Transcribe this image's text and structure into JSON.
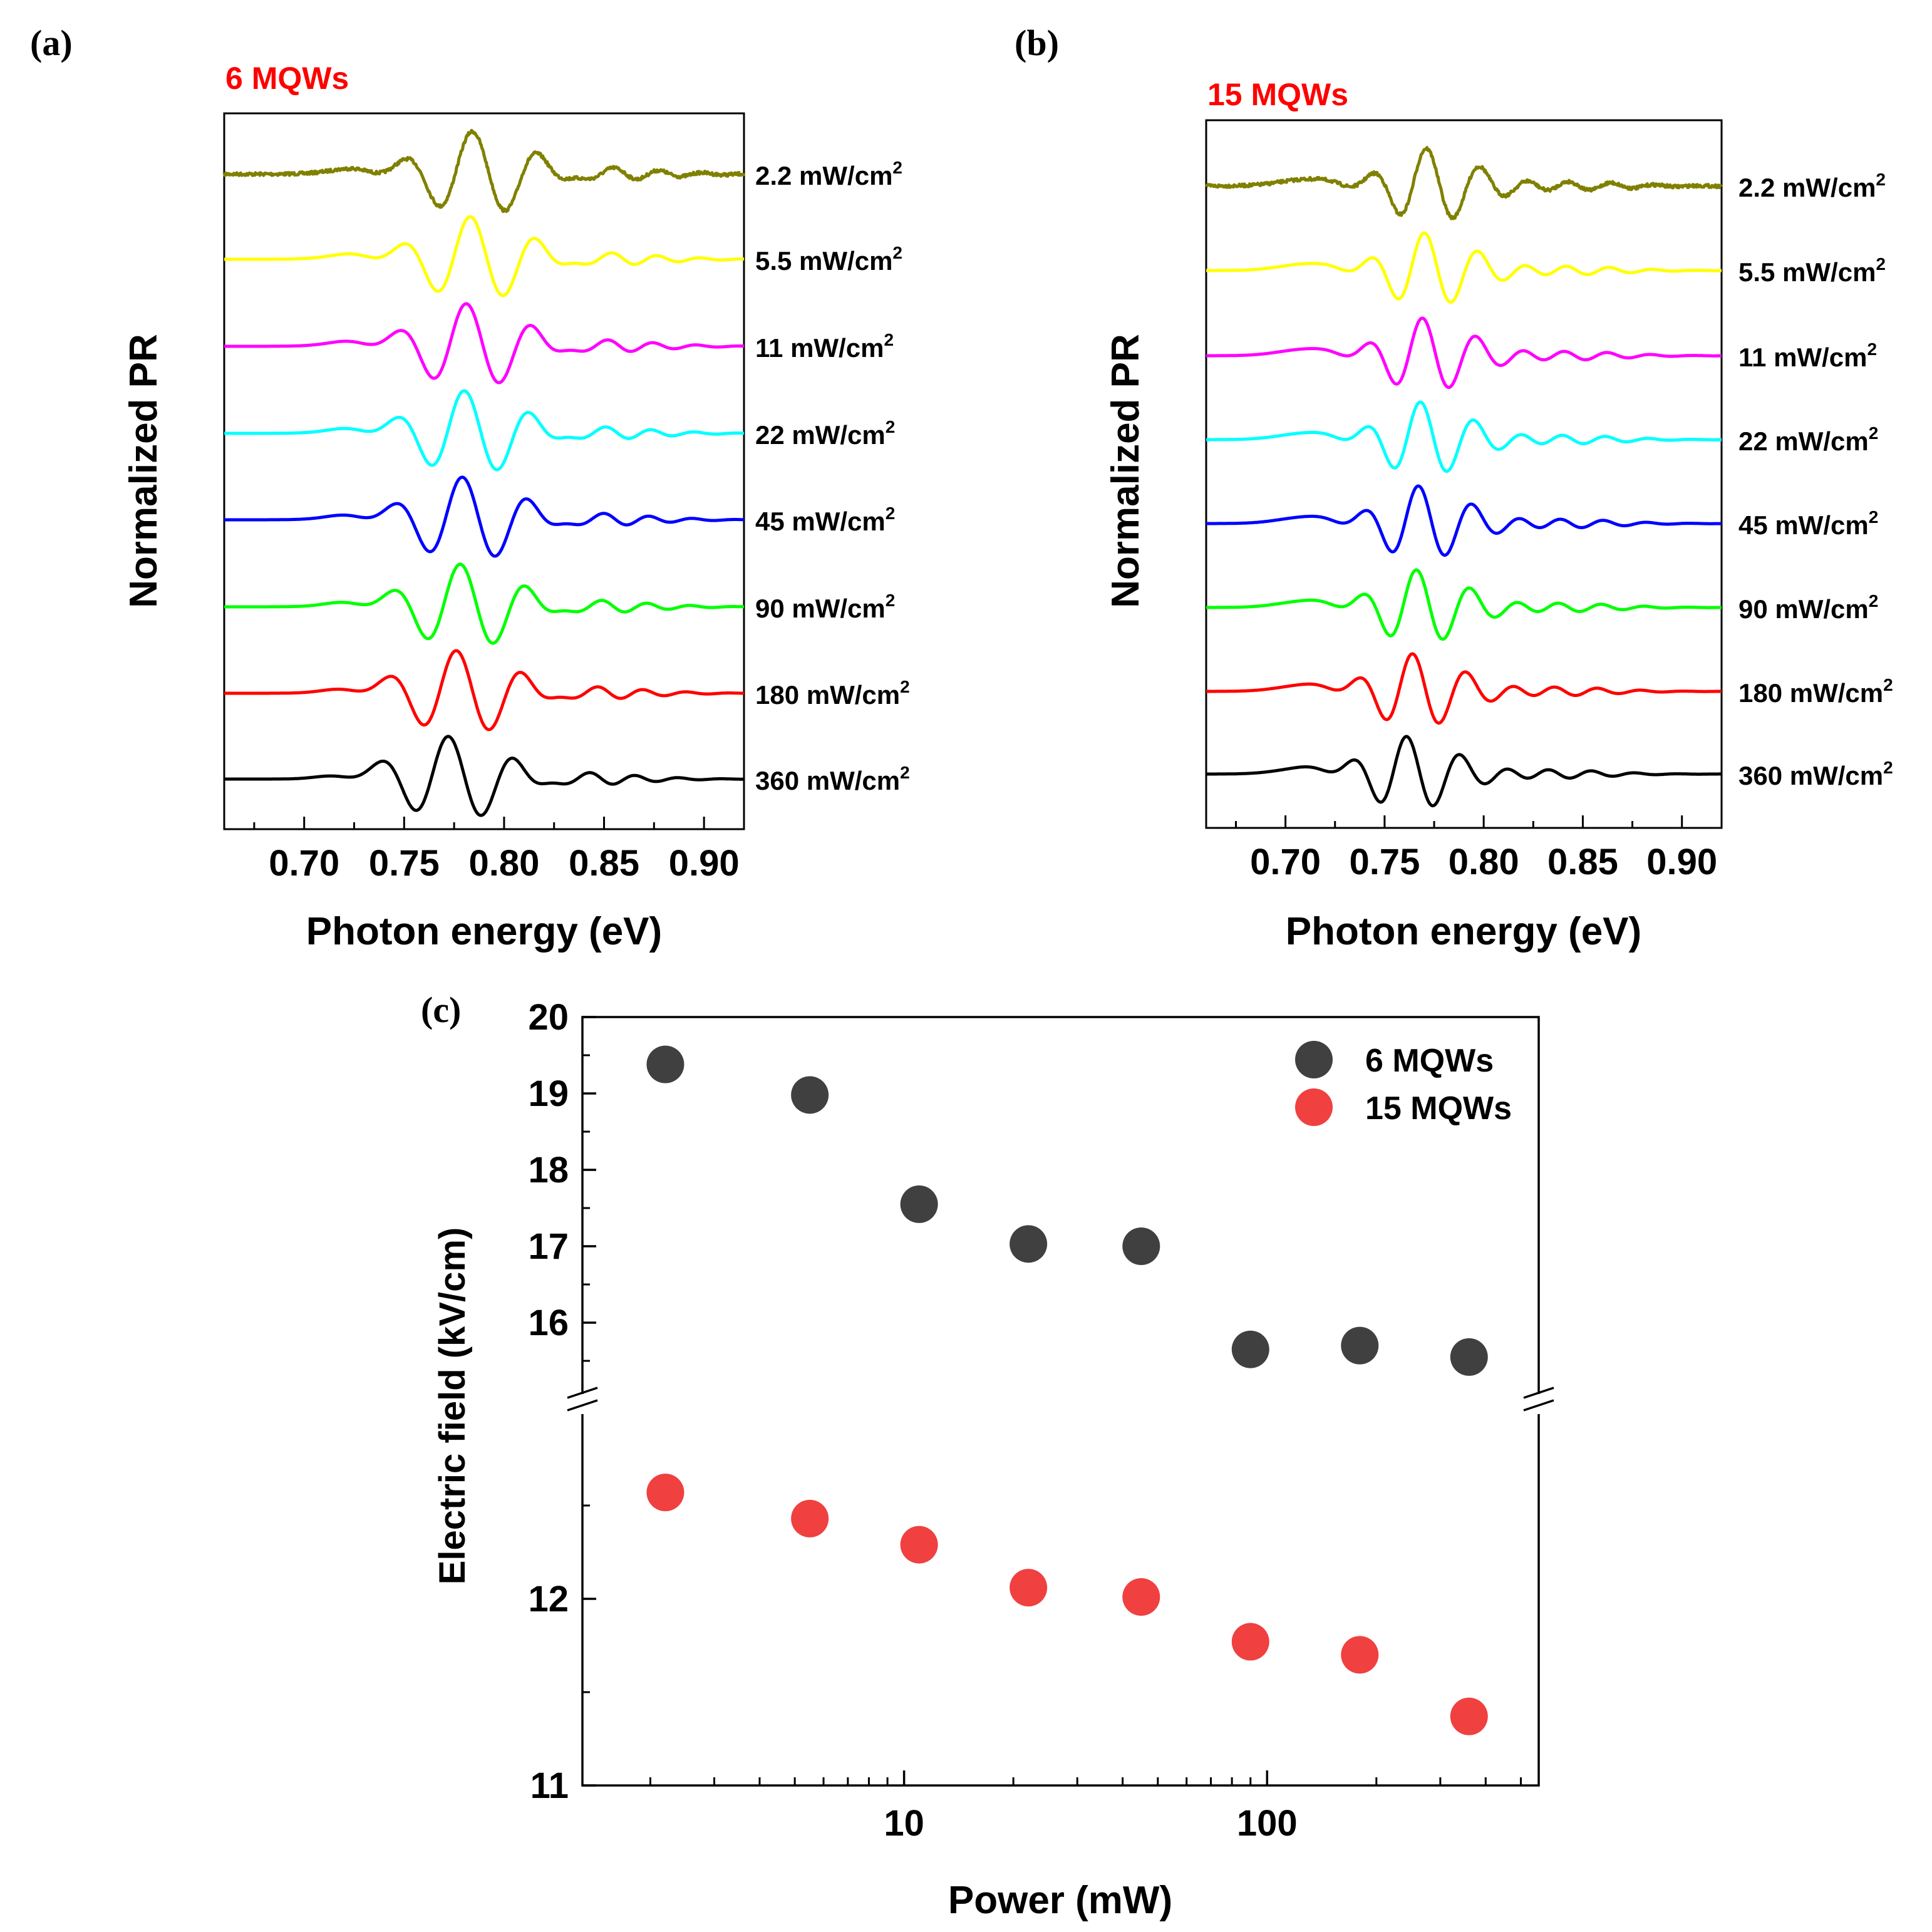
{
  "chart_data": [
    {
      "panel_label": "(a)",
      "title": "6 MQWs",
      "title_color": "#ff0000",
      "type": "line",
      "xlabel": "Photon energy (eV)",
      "ylabel": "Normalized PR",
      "xlim": [
        0.66,
        0.92
      ],
      "xticks": [
        "0.70",
        "0.75",
        "0.80",
        "0.85",
        "0.90"
      ],
      "xtick_values": [
        0.7,
        0.75,
        0.8,
        0.85,
        0.9
      ],
      "traces_vertically_offset": true,
      "series": [
        {
          "name": "2.2 mW/cm²",
          "label_main": "2.2 mW/cm",
          "label_sup": "2",
          "color": "#808000",
          "center": 0.784,
          "noisy": true
        },
        {
          "name": "5.5 mW/cm²",
          "label_main": "5.5 mW/cm",
          "label_sup": "2",
          "color": "#ffff00",
          "center": 0.783
        },
        {
          "name": "11 mW/cm²",
          "label_main": "11 mW/cm",
          "label_sup": "2",
          "color": "#ff00ff",
          "center": 0.781
        },
        {
          "name": "22 mW/cm²",
          "label_main": "22 mW/cm",
          "label_sup": "2",
          "color": "#00ffff",
          "center": 0.78
        },
        {
          "name": "45 mW/cm²",
          "label_main": "45 mW/cm",
          "label_sup": "2",
          "color": "#0000ff",
          "center": 0.779
        },
        {
          "name": "90 mW/cm²",
          "label_main": "90 mW/cm",
          "label_sup": "2",
          "color": "#00ff00",
          "center": 0.778
        },
        {
          "name": "180 mW/cm²",
          "label_main": "180 mW/cm",
          "label_sup": "2",
          "color": "#ff0000",
          "center": 0.776
        },
        {
          "name": "360 mW/cm²",
          "label_main": "360 mW/cm",
          "label_sup": "2",
          "color": "#000000",
          "center": 0.772
        }
      ]
    },
    {
      "panel_label": "(b)",
      "title": "15 MQWs",
      "title_color": "#ff0000",
      "type": "line",
      "xlabel": "Photon energy (eV)",
      "ylabel": "Normalized PR",
      "xlim": [
        0.66,
        0.92
      ],
      "xticks": [
        "0.70",
        "0.75",
        "0.80",
        "0.85",
        "0.90"
      ],
      "xtick_values": [
        0.7,
        0.75,
        0.8,
        0.85,
        0.9
      ],
      "traces_vertically_offset": true,
      "series": [
        {
          "name": "2.2 mW/cm²",
          "label_main": "2.2 mW/cm",
          "label_sup": "2",
          "color": "#808000",
          "center": 0.771,
          "noisy": true
        },
        {
          "name": "5.5 mW/cm²",
          "label_main": "5.5 mW/cm",
          "label_sup": "2",
          "color": "#ffff00",
          "center": 0.77
        },
        {
          "name": "11 mW/cm²",
          "label_main": "11 mW/cm",
          "label_sup": "2",
          "color": "#ff00ff",
          "center": 0.769
        },
        {
          "name": "22 mW/cm²",
          "label_main": "22 mW/cm",
          "label_sup": "2",
          "color": "#00ffff",
          "center": 0.768
        },
        {
          "name": "45 mW/cm²",
          "label_main": "45 mW/cm",
          "label_sup": "2",
          "color": "#0000ff",
          "center": 0.767
        },
        {
          "name": "90 mW/cm²",
          "label_main": "90 mW/cm",
          "label_sup": "2",
          "color": "#00ff00",
          "center": 0.766
        },
        {
          "name": "180 mW/cm²",
          "label_main": "180 mW/cm",
          "label_sup": "2",
          "color": "#ff0000",
          "center": 0.764
        },
        {
          "name": "360 mW/cm²",
          "label_main": "360 mW/cm",
          "label_sup": "2",
          "color": "#000000",
          "center": 0.761
        }
      ]
    },
    {
      "panel_label": "(c)",
      "type": "scatter",
      "xlabel": "Power (mW)",
      "ylabel": "Electric field (kV/cm)",
      "x_scale": "log",
      "xlim": [
        1.3,
        560
      ],
      "xticks": [
        "10",
        "100"
      ],
      "xtick_values": [
        10,
        100
      ],
      "y_axis_break": true,
      "upper_ylim": [
        15.0,
        20.0
      ],
      "upper_yticks": [
        "16",
        "17",
        "18",
        "19",
        "20"
      ],
      "upper_ytick_values": [
        16,
        17,
        18,
        19,
        20
      ],
      "lower_ylim": [
        11.0,
        13.0
      ],
      "lower_yticks": [
        "11",
        "12"
      ],
      "lower_ytick_values": [
        11,
        12
      ],
      "legend_position": "top-right",
      "series": [
        {
          "name": "6 MQWs",
          "color": "#404040",
          "x": [
            2.2,
            5.5,
            11,
            22,
            45,
            90,
            180,
            360
          ],
          "y": [
            19.38,
            18.98,
            17.55,
            17.03,
            17.0,
            15.65,
            15.7,
            15.55
          ]
        },
        {
          "name": "15 MQWs",
          "color": "#f04040",
          "x": [
            2.2,
            5.5,
            11,
            22,
            45,
            90,
            180,
            360
          ],
          "y": [
            12.57,
            12.43,
            12.29,
            12.06,
            12.01,
            11.77,
            11.7,
            11.37
          ]
        }
      ]
    }
  ]
}
